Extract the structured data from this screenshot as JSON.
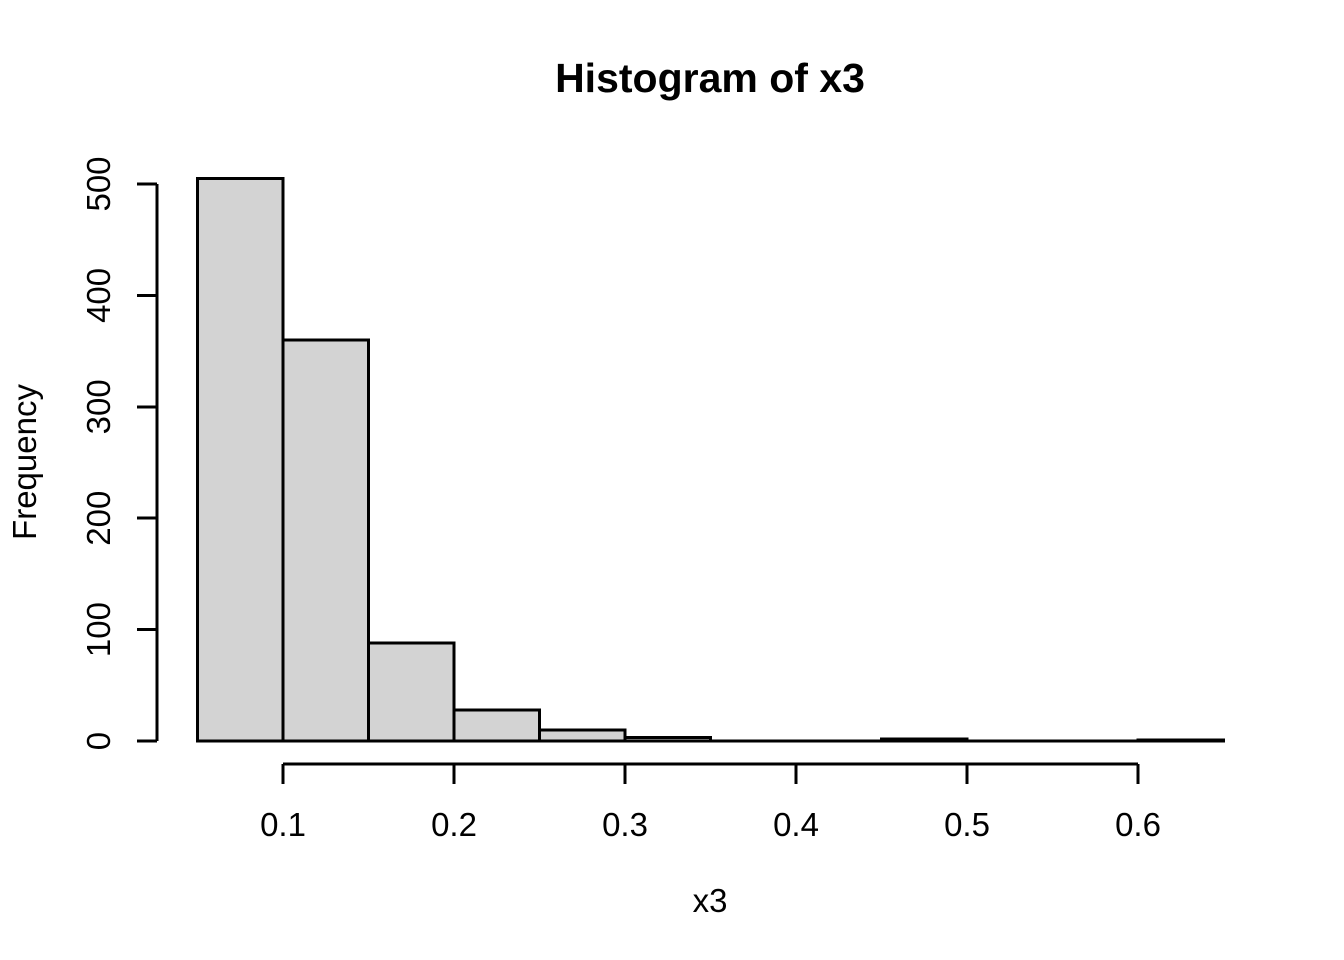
{
  "chart_data": {
    "type": "bar",
    "subtype": "histogram",
    "title": "Histogram of x3",
    "xlabel": "x3",
    "ylabel": "Frequency",
    "bin_breaks": [
      0.05,
      0.1,
      0.15,
      0.2,
      0.25,
      0.3,
      0.35,
      0.4,
      0.45,
      0.5,
      0.55,
      0.6,
      0.65
    ],
    "counts": [
      505,
      360,
      88,
      28,
      10,
      3,
      0,
      0,
      2,
      0,
      0,
      1
    ],
    "x_ticks": [
      0.1,
      0.2,
      0.3,
      0.4,
      0.5,
      0.6
    ],
    "y_ticks": [
      0,
      100,
      200,
      300,
      400,
      500
    ],
    "xlim": [
      0.05,
      0.65
    ],
    "ylim": [
      0,
      500
    ],
    "grid": false,
    "legend": "none",
    "colors": {
      "bar_fill": "#d3d3d3",
      "bar_stroke": "#000000",
      "axis": "#000000",
      "text": "#000000",
      "background": "#ffffff"
    }
  }
}
